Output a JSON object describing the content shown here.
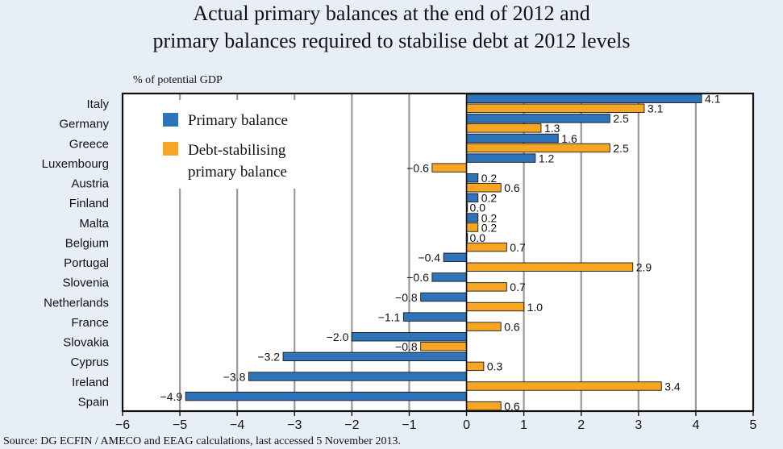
{
  "chart_data": {
    "type": "bar",
    "orientation": "horizontal",
    "title": "Actual primary balances at the end of 2012 and",
    "subtitle": "primary balances required to stabilise debt at 2012 levels",
    "ylabel": "% of potential GDP",
    "source": "Source: DG ECFIN / AMECO and EEAG calculations, last accessed 5 November 2013.",
    "xlim": [
      -6,
      5
    ],
    "xticks": [
      "−6",
      "−5",
      "−4",
      "−3",
      "−2",
      "−1",
      "0",
      "1",
      "2",
      "3",
      "4",
      "5"
    ],
    "categories": [
      "Italy",
      "Germany",
      "Greece",
      "Luxembourg",
      "Austria",
      "Finland",
      "Malta",
      "Belgium",
      "Portugal",
      "Slovenia",
      "Netherlands",
      "France",
      "Slovakia",
      "Cyprus",
      "Ireland",
      "Spain"
    ],
    "series": [
      {
        "name": "Primary balance",
        "color": "#2f74b9",
        "values": [
          4.1,
          2.5,
          1.6,
          1.2,
          0.2,
          0.2,
          0.2,
          0.0,
          -0.4,
          -0.6,
          -0.8,
          -1.1,
          -2.0,
          -3.2,
          -3.8,
          -4.9
        ],
        "labels": [
          "4.1",
          "2.5",
          "1.6",
          "1.2",
          "0.2",
          "0.2",
          "0.2",
          "0.0",
          "−0.4",
          "−0.6",
          "−0.8",
          "−1.1",
          "−2.0",
          "−3.2",
          "−3.8",
          "−4.9"
        ]
      },
      {
        "name": "Debt-stabilising primary balance",
        "legend_lines": [
          "Debt-stabilising",
          "primary balance"
        ],
        "color": "#f6a623",
        "values": [
          3.1,
          1.3,
          2.5,
          -0.6,
          0.6,
          0.0,
          0.2,
          0.7,
          2.9,
          0.7,
          1.0,
          0.6,
          -0.8,
          0.3,
          3.4,
          0.6
        ],
        "labels": [
          "3.1",
          "1.3",
          "2.5",
          "−0.6",
          "0.6",
          "0.0",
          "0.2",
          "0.7",
          "2.9",
          "0.7",
          "1.0",
          "0.6",
          "−0.8",
          "0.3",
          "3.4",
          "0.6"
        ]
      }
    ],
    "legend_position": "top-left"
  }
}
